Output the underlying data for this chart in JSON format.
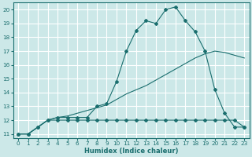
{
  "xlabel": "Humidex (Indice chaleur)",
  "background_color": "#cce8e8",
  "grid_color": "#ffffff",
  "line_color": "#1a6e6e",
  "xlim": [
    -0.5,
    23.5
  ],
  "ylim": [
    10.7,
    20.5
  ],
  "xticks": [
    0,
    1,
    2,
    3,
    4,
    5,
    6,
    7,
    8,
    9,
    10,
    11,
    12,
    13,
    14,
    15,
    16,
    17,
    18,
    19,
    20,
    21,
    22,
    23
  ],
  "yticks": [
    11,
    12,
    13,
    14,
    15,
    16,
    17,
    18,
    19,
    20
  ],
  "line1_x": [
    0,
    1,
    2,
    3,
    4,
    5,
    6,
    7,
    8,
    9,
    10,
    11,
    12,
    13,
    14,
    15,
    16,
    17,
    18,
    19,
    20,
    21,
    22,
    23
  ],
  "line1_y": [
    11,
    11,
    11.5,
    12,
    12,
    12,
    12,
    12,
    12,
    12,
    12,
    12,
    12,
    12,
    12,
    12,
    12,
    12,
    12,
    12,
    12,
    12,
    12,
    11.5
  ],
  "line2_x": [
    0,
    1,
    2,
    3,
    4,
    5,
    6,
    7,
    8,
    9,
    10,
    11,
    12,
    13,
    14,
    15,
    16,
    17,
    18,
    19,
    20,
    21,
    22,
    23
  ],
  "line2_y": [
    11,
    11,
    11.5,
    12,
    12.2,
    12.3,
    12.5,
    12.7,
    12.9,
    13.1,
    13.5,
    13.9,
    14.2,
    14.5,
    14.9,
    15.3,
    15.7,
    16.1,
    16.5,
    16.8,
    17.0,
    16.9,
    16.7,
    16.5
  ],
  "line3_x": [
    0,
    1,
    2,
    3,
    4,
    5,
    6,
    7,
    8,
    9,
    10,
    11,
    12,
    13,
    14,
    15,
    16,
    17,
    18,
    19,
    20,
    21,
    22,
    23
  ],
  "line3_y": [
    11,
    11,
    11.5,
    12,
    12.2,
    12.2,
    12.2,
    12.2,
    13.0,
    13.2,
    14.8,
    17.0,
    18.5,
    19.2,
    19.0,
    20.0,
    20.2,
    19.2,
    18.4,
    17.0,
    14.2,
    12.5,
    11.5,
    11.5
  ],
  "marker_x1": [
    0,
    1,
    2,
    3,
    4,
    5,
    6,
    7,
    8,
    9,
    10,
    11,
    12,
    13,
    14,
    15,
    16,
    17,
    18,
    19,
    20,
    21,
    22,
    23
  ],
  "marker_y1": [
    11,
    11,
    11.5,
    12,
    12,
    12,
    12,
    12,
    12,
    12,
    12,
    12,
    12,
    12,
    12,
    12,
    12,
    12,
    12,
    12,
    12,
    12,
    12,
    11.5
  ],
  "marker_x3": [
    0,
    1,
    2,
    3,
    4,
    5,
    6,
    7,
    8,
    9,
    10,
    11,
    12,
    13,
    14,
    15,
    16,
    17,
    18,
    19,
    20,
    21,
    22,
    23
  ],
  "marker_y3": [
    11,
    11,
    11.5,
    12,
    12.2,
    12.2,
    12.2,
    12.2,
    13.0,
    13.2,
    14.8,
    17.0,
    18.5,
    19.2,
    19.0,
    20.0,
    20.2,
    19.2,
    18.4,
    17.0,
    14.2,
    12.5,
    11.5,
    11.5
  ],
  "xlabel_fontsize": 6.0,
  "tick_fontsize": 5.2
}
